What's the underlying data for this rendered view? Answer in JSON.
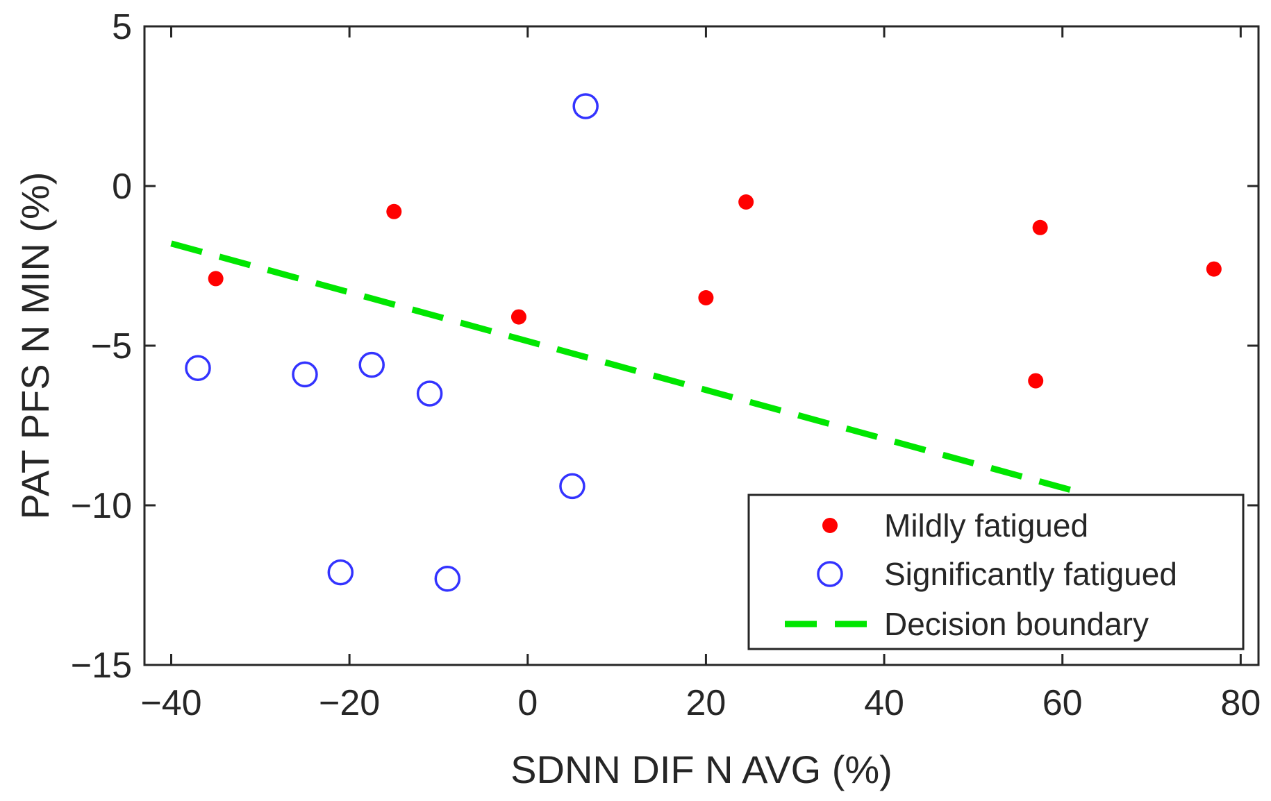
{
  "chart_data": {
    "type": "scatter",
    "title": "",
    "xlabel": "SDNN DIF N AVG (%)",
    "ylabel": "PAT PFS N MIN (%)",
    "xlim": [
      -43,
      82
    ],
    "ylim": [
      -15,
      5
    ],
    "xticks": [
      -40,
      -20,
      0,
      20,
      40,
      60,
      80
    ],
    "yticks": [
      5,
      0,
      -5,
      -10,
      -15
    ],
    "xtick_labels": [
      "−40",
      "−20",
      "0",
      "20",
      "40",
      "60",
      "80"
    ],
    "ytick_labels": [
      "5",
      "0",
      "−5",
      "−10",
      "−15"
    ],
    "grid": false,
    "legend_position": "bottom-right",
    "series": [
      {
        "name": "Mildly fatigued",
        "marker": "filled-dot",
        "color": "#ff0000",
        "points": [
          {
            "x": -35,
            "y": -2.9
          },
          {
            "x": -15,
            "y": -0.8
          },
          {
            "x": -1,
            "y": -4.1
          },
          {
            "x": 20,
            "y": -3.5
          },
          {
            "x": 24.5,
            "y": -0.5
          },
          {
            "x": 57.5,
            "y": -1.3
          },
          {
            "x": 57,
            "y": -6.1
          },
          {
            "x": 77,
            "y": -2.6
          }
        ]
      },
      {
        "name": "Significantly fatigued",
        "marker": "open-circle",
        "color": "#3333ff",
        "points": [
          {
            "x": -37,
            "y": -5.7
          },
          {
            "x": -25,
            "y": -5.9
          },
          {
            "x": -17.5,
            "y": -5.6
          },
          {
            "x": -11,
            "y": -6.5
          },
          {
            "x": 6.5,
            "y": 2.5
          },
          {
            "x": 5,
            "y": -9.4
          },
          {
            "x": -21,
            "y": -12.1
          },
          {
            "x": -9,
            "y": -12.3
          }
        ]
      },
      {
        "name": "Decision boundary",
        "marker": "dashed-line",
        "color": "#00e600",
        "points": [
          {
            "x": -40,
            "y": -1.8
          },
          {
            "x": 62,
            "y": -9.6
          }
        ]
      }
    ]
  }
}
